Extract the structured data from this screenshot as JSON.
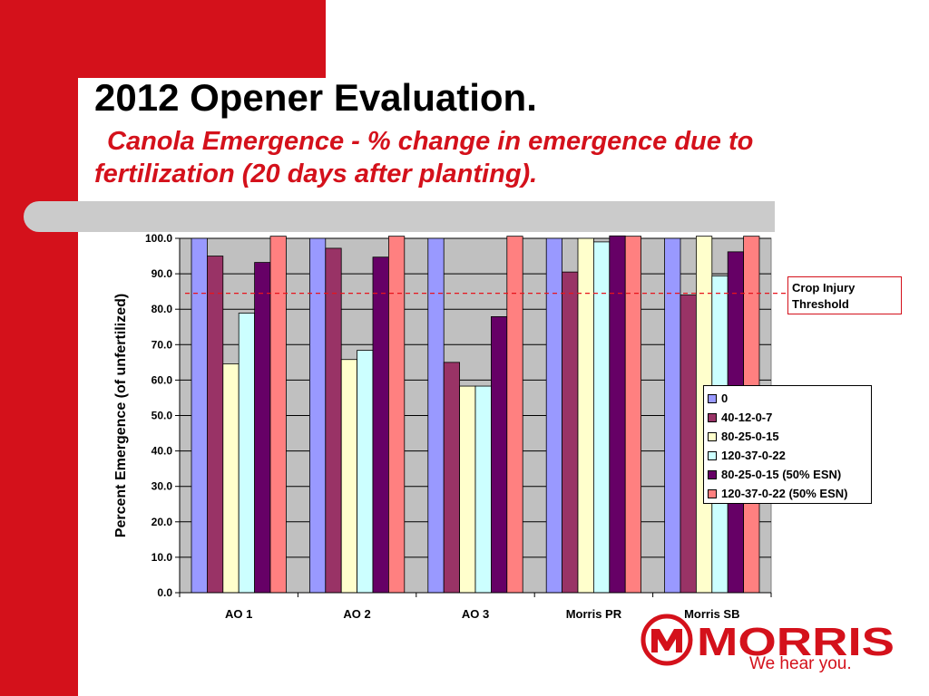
{
  "slide": {
    "title": "2012 Opener Evaluation.",
    "subtitle": "Canola Emergence - % change in emergence due to fertilization (20 days after planting)."
  },
  "threshold": {
    "label": "Crop Injury Threshold",
    "value": 84.5,
    "color": "#e8141c"
  },
  "logo": {
    "name": "MORRIS",
    "tagline": "We hear you.",
    "color": "#d4111b"
  },
  "chart_data": {
    "type": "bar",
    "title": "",
    "xlabel": "",
    "ylabel": "Percent Emergence (of unfertilized)",
    "ylim": [
      0,
      100
    ],
    "yticks": [
      "0.0",
      "10.0",
      "20.0",
      "30.0",
      "40.0",
      "50.0",
      "60.0",
      "70.0",
      "80.0",
      "90.0",
      "100.0"
    ],
    "categories": [
      "AO 1",
      "AO 2",
      "AO 3",
      "Morris PR",
      "Morris SB"
    ],
    "grid": true,
    "legend_position": "right",
    "plot_background": "#c0c0c0",
    "series": [
      {
        "name": "0",
        "color": "#9999ff",
        "values": [
          100.0,
          100.0,
          100.0,
          100.0,
          100.0
        ]
      },
      {
        "name": "40-12-0-7",
        "color": "#993366",
        "values": [
          95.0,
          97.2,
          65.0,
          90.5,
          84.0
        ]
      },
      {
        "name": "80-25-0-15",
        "color": "#ffffcc",
        "values": [
          64.6,
          65.8,
          58.3,
          100.0,
          100.6
        ]
      },
      {
        "name": "120-37-0-22",
        "color": "#ccffff",
        "values": [
          78.9,
          68.4,
          58.3,
          99.0,
          89.4
        ]
      },
      {
        "name": "80-25-0-15 (50% ESN)",
        "color": "#660066",
        "values": [
          93.2,
          94.7,
          77.9,
          100.7,
          96.2
        ]
      },
      {
        "name": "120-37-0-22 (50% ESN)",
        "color": "#ff8080",
        "values": [
          100.6,
          100.6,
          100.6,
          100.6,
          100.6
        ]
      }
    ]
  }
}
